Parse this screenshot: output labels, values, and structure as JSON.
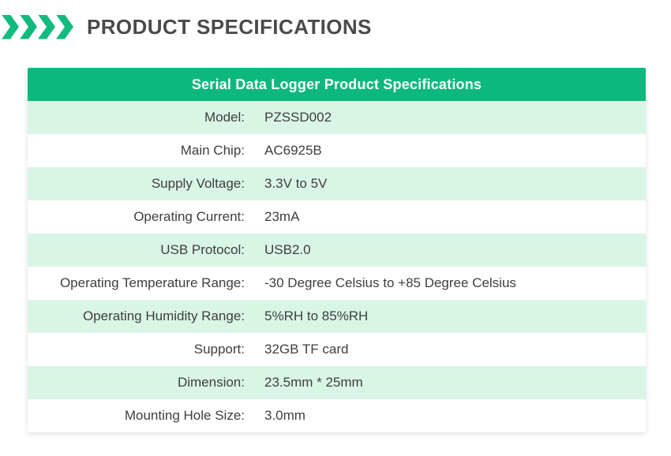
{
  "page": {
    "heading": "PRODUCT SPECIFICATIONS",
    "chevron_count": 4
  },
  "colors": {
    "accent_green": "#0cb87d",
    "chevron_green": "#10bb7e",
    "row_light_green": "#d9f5e6",
    "row_white": "#ffffff",
    "heading_text": "#4a4a4a",
    "cell_text": "#3e3e3e",
    "table_header_text": "#ffffff"
  },
  "table": {
    "title": "Serial Data Logger Product Specifications",
    "rows": [
      {
        "label": "Model:",
        "value": "PZSSD002"
      },
      {
        "label": "Main Chip:",
        "value": "AC6925B"
      },
      {
        "label": "Supply Voltage:",
        "value": "3.3V to 5V"
      },
      {
        "label": "Operating Current:",
        "value": "23mA"
      },
      {
        "label": "USB Protocol:",
        "value": "USB2.0"
      },
      {
        "label": "Operating Temperature Range:",
        "value": "-30 Degree Celsius to +85 Degree Celsius"
      },
      {
        "label": "Operating Humidity Range:",
        "value": "5%RH to 85%RH"
      },
      {
        "label": "Support:",
        "value": "32GB TF card"
      },
      {
        "label": "Dimension:",
        "value": "23.5mm * 25mm"
      },
      {
        "label": "Mounting Hole Size:",
        "value": "3.0mm"
      }
    ]
  }
}
